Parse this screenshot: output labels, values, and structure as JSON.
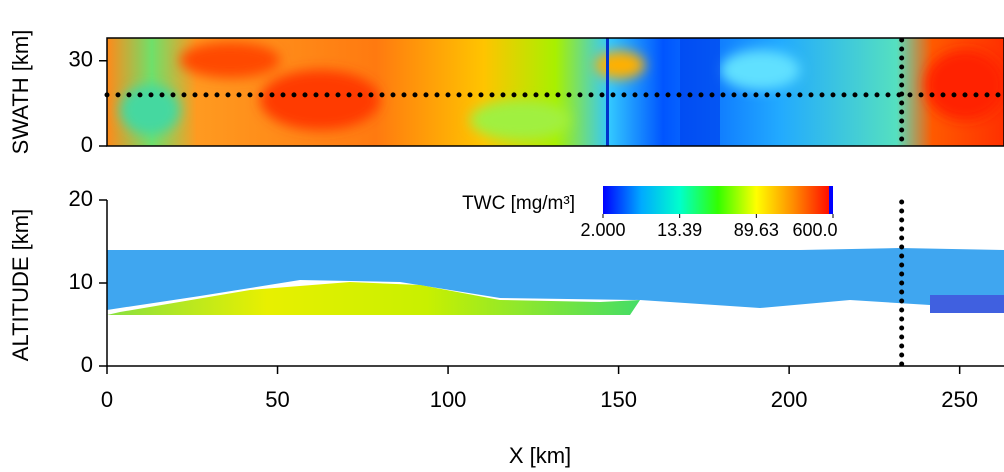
{
  "chart_data": [
    {
      "type": "heatmap",
      "ylabel": "SWATH [km]",
      "xlim": [
        0,
        263
      ],
      "ylim": [
        0,
        38
      ],
      "yticks": [
        0,
        30
      ],
      "marker_x": 233,
      "swath_line_y": 18
    },
    {
      "type": "heatmap",
      "ylabel": "ALTITUDE [km]",
      "xlabel": "X [km]",
      "xlim": [
        0,
        263
      ],
      "ylim": [
        0,
        20
      ],
      "yticks": [
        0,
        10,
        20
      ],
      "xticks": [
        0,
        50,
        100,
        150,
        200,
        250
      ],
      "marker_x": 233,
      "colorbar": {
        "label": "TWC [mg/m³]",
        "log": true,
        "lim": [
          2,
          600
        ],
        "colors": [
          "#0000ff",
          "#00aaff",
          "#00ffcc",
          "#33ff00",
          "#ffff00",
          "#ff8800",
          "#ff0000",
          "#0000ff"
        ],
        "ticks": [
          {
            "value": 2,
            "label": "2.000"
          },
          13.39,
          89.63,
          {
            "value": 600,
            "label": "600.0"
          }
        ]
      }
    }
  ]
}
